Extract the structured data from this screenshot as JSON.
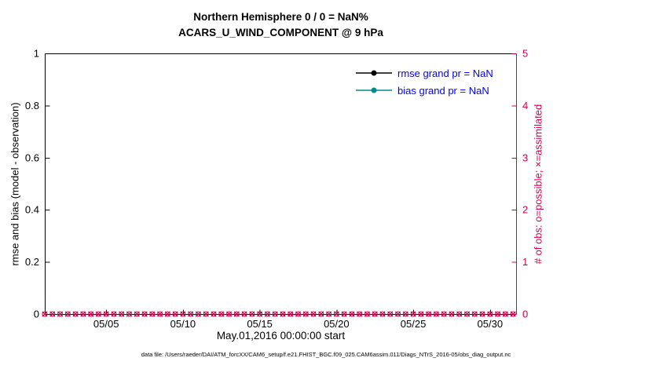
{
  "colors": {
    "frame": "#000000",
    "obs_axis": "#d4004f",
    "legend_text": "#0000ff",
    "rmse": "#000000",
    "bias": "#008b8b",
    "background": "#ffffff"
  },
  "caption": "data file: /Users/raeder/DAI/ATM_forcXX/CAM6_setup/f.e21.FHIST_BGC.f09_025.CAM6assim.011/Diags_NTrS_2016-05/obs_diag_output.nc",
  "chart_data": {
    "type": "line",
    "title": "Northern Hemisphere 0 / 0 = NaN%",
    "subtitle": "ACARS_U_WIND_COMPONENT @ 9 hPa",
    "xlabel": "May.01,2016 00:00:00 start",
    "ylabel_left": "rmse and bias (model - observation)",
    "ylabel_right": "# of obs: o=possible; ×=assimilated",
    "ylim_left": [
      0,
      1
    ],
    "ylim_right": [
      0,
      5
    ],
    "xlim_days": [
      1,
      31.75
    ],
    "grid": false,
    "legend_position": "top-right-inside",
    "y_ticks_left": [
      "0",
      "0.2",
      "0.4",
      "0.6",
      "0.8",
      "1"
    ],
    "y_ticks_right": [
      "0",
      "1",
      "2",
      "3",
      "4",
      "5"
    ],
    "x_ticks": [
      {
        "value": 5,
        "label": "05/05"
      },
      {
        "value": 10,
        "label": "05/10"
      },
      {
        "value": 15,
        "label": "05/15"
      },
      {
        "value": 20,
        "label": "05/20"
      },
      {
        "value": 25,
        "label": "05/25"
      },
      {
        "value": 30,
        "label": "05/30"
      }
    ],
    "series": [
      {
        "name": "rmse",
        "legend_label": "rmse grand pr = NaN",
        "color": "#000000",
        "marker": "filled-circle",
        "axis": "left",
        "values": []
      },
      {
        "name": "bias",
        "legend_label": "bias grand pr = NaN",
        "color": "#008b8b",
        "marker": "filled-circle",
        "axis": "left",
        "values": []
      },
      {
        "name": "possible_obs",
        "legend_label": "o=possible",
        "color": "#d4004f",
        "marker": "o",
        "axis": "right",
        "y_constant": 0,
        "x_start": 1,
        "x_end": 31.5,
        "x_step": 0.5
      },
      {
        "name": "assimilated_obs",
        "legend_label": "×=assimilated",
        "color": "#d4004f",
        "marker": "x",
        "axis": "right",
        "y_constant": 0,
        "x_start": 1,
        "x_end": 31.5,
        "x_step": 0.5
      }
    ]
  }
}
